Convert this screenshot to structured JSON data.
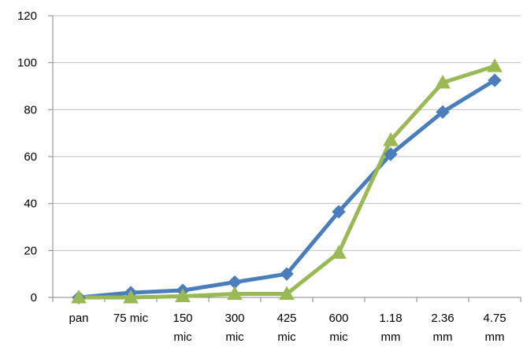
{
  "chart_data": {
    "type": "line",
    "title": "",
    "xlabel": "",
    "ylabel": "",
    "categories": [
      [
        "pan"
      ],
      [
        "75 mic"
      ],
      [
        "150",
        "mic"
      ],
      [
        "300",
        "mic"
      ],
      [
        "425",
        "mic"
      ],
      [
        "600",
        "mic"
      ],
      [
        "1.18",
        "mm"
      ],
      [
        "2.36",
        "mm"
      ],
      [
        "4.75",
        "mm"
      ]
    ],
    "ylim": [
      0,
      120
    ],
    "yticks": [
      0,
      20,
      40,
      60,
      80,
      100,
      120
    ],
    "grid": "horizontal",
    "legend": "none",
    "series": [
      {
        "color": "#4a7ebb",
        "marker": "diamond",
        "values": [
          0,
          2,
          3,
          6.5,
          10,
          36.5,
          61,
          79,
          92.5
        ]
      },
      {
        "color": "#98b954",
        "marker": "triangle",
        "values": [
          0,
          0,
          0.5,
          1.5,
          1.5,
          19,
          67,
          91.5,
          98.5
        ]
      }
    ]
  }
}
